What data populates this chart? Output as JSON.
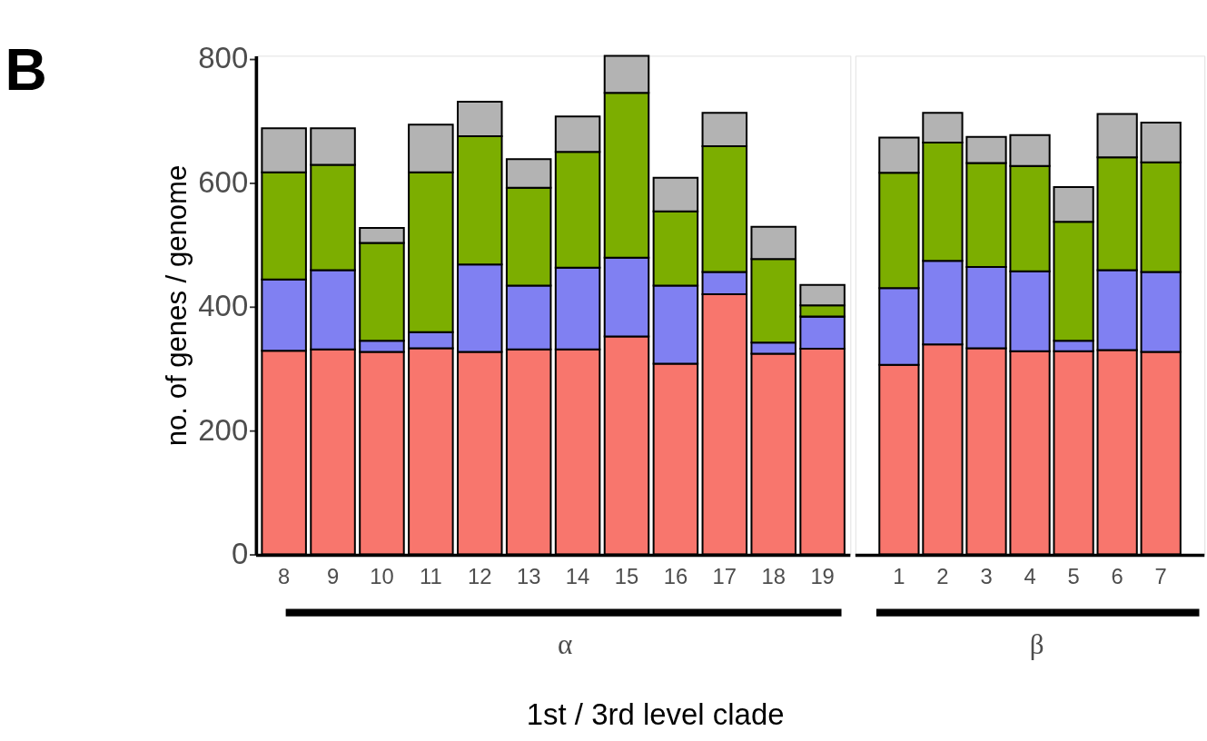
{
  "chart_data": [
    {
      "type": "bar",
      "stacked": true,
      "title": "B",
      "ylabel": "no. of genes / genome",
      "xlabel": "α",
      "annotations": [
        "1st / 3rd level clade"
      ],
      "categories": [
        "8",
        "9",
        "10",
        "11",
        "12",
        "13",
        "14",
        "15",
        "16",
        "17",
        "18",
        "19"
      ],
      "ylim": [
        0,
        805
      ],
      "yticks": [
        0,
        200,
        400,
        600,
        800
      ],
      "grid": false,
      "legend": false,
      "series": [
        {
          "color": "#f8766d",
          "values": [
            329,
            331,
            327,
            333,
            327,
            331,
            331,
            352,
            308,
            420,
            324,
            332
          ]
        },
        {
          "color": "#8080f2",
          "values": [
            115,
            128,
            18,
            26,
            141,
            103,
            132,
            127,
            126,
            36,
            18,
            52
          ]
        },
        {
          "color": "#7cae00",
          "values": [
            173,
            170,
            158,
            258,
            207,
            158,
            187,
            266,
            120,
            203,
            135,
            18
          ]
        },
        {
          "color": "#b3b3b3",
          "values": [
            71,
            59,
            24,
            77,
            56,
            46,
            57,
            60,
            54,
            54,
            52,
            33
          ]
        }
      ]
    },
    {
      "type": "bar",
      "stacked": true,
      "xlabel": "β",
      "tick_labels": "x",
      "categories": [
        "1",
        "2",
        "3",
        "4",
        "5",
        "6",
        "7"
      ],
      "ylim": [
        0,
        805
      ],
      "grid": false,
      "legend": false,
      "series": [
        {
          "color": "#f8766d",
          "values": [
            306,
            339,
            333,
            328,
            328,
            330,
            327
          ]
        },
        {
          "color": "#8080f2",
          "values": [
            124,
            135,
            131,
            129,
            17,
            129,
            129
          ]
        },
        {
          "color": "#7cae00",
          "values": [
            186,
            191,
            168,
            170,
            192,
            182,
            177
          ]
        },
        {
          "color": "#b3b3b3",
          "values": [
            57,
            48,
            42,
            50,
            56,
            70,
            64
          ]
        }
      ]
    }
  ]
}
